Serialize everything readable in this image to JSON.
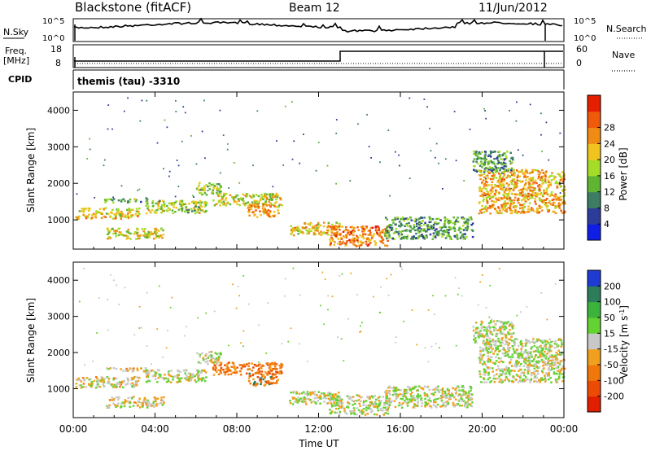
{
  "header": {
    "station": "Blackstone (fitACF)",
    "beam": "Beam 12",
    "date": "11/Jun/2012"
  },
  "noise_panel": {
    "left_label": "N.Sky",
    "right_label": "N.Search",
    "left_ticks": [
      "10^5",
      "10^0"
    ],
    "right_ticks": [
      "10^5",
      "10^0"
    ]
  },
  "freq_panel": {
    "left_label_1": "Freq.",
    "left_label_2": "[MHz]",
    "right_label": "Nave",
    "left_ticks": [
      "18",
      "8"
    ],
    "right_ticks": [
      "60",
      "0"
    ]
  },
  "cpid_panel": {
    "label": "CPID",
    "text": "themis (tau) -3310"
  },
  "chart_data": [
    {
      "type": "heatmap",
      "panel": "power",
      "ylabel": "Slant Range [km]",
      "xlabel": "",
      "colorbar_label": "Power [dB]",
      "colorbar_ticks": [
        "4",
        "8",
        "12",
        "16",
        "20",
        "24",
        "28"
      ],
      "colorbar_colors": [
        "#0f1ee6",
        "#2d3c9a",
        "#3c7d64",
        "#5fb432",
        "#a5dc28",
        "#f0c31e",
        "#f08c14",
        "#f05a0a",
        "#e61e00"
      ],
      "y_ticks": [
        "1000",
        "2000",
        "3000",
        "4000"
      ],
      "x_ticks": [
        "00:00",
        "04:00",
        "08:00",
        "12:00",
        "16:00",
        "20:00",
        "00:00"
      ],
      "ylim": [
        200,
        4500
      ],
      "xlim_hours": [
        0,
        24
      ],
      "scatter_regions": [
        {
          "t0": 0.1,
          "t1": 3.2,
          "r0": 1050,
          "r1": 1350,
          "value": 22
        },
        {
          "t0": 1.5,
          "t1": 3.7,
          "r0": 1500,
          "r1": 1600,
          "value": 14
        },
        {
          "t0": 1.6,
          "t1": 4.4,
          "r0": 500,
          "r1": 800,
          "value": 20
        },
        {
          "t0": 3.5,
          "t1": 6.5,
          "r0": 1200,
          "r1": 1550,
          "value": 18
        },
        {
          "t0": 6.0,
          "t1": 7.2,
          "r0": 1700,
          "r1": 2050,
          "value": 16
        },
        {
          "t0": 6.8,
          "t1": 10.2,
          "r0": 1400,
          "r1": 1750,
          "value": 20
        },
        {
          "t0": 8.5,
          "t1": 10.0,
          "r0": 1100,
          "r1": 1450,
          "value": 25
        },
        {
          "t0": 10.5,
          "t1": 13.0,
          "r0": 600,
          "r1": 950,
          "value": 22
        },
        {
          "t0": 12.5,
          "t1": 15.4,
          "r0": 300,
          "r1": 850,
          "value": 27
        },
        {
          "t0": 15.2,
          "t1": 19.5,
          "r0": 500,
          "r1": 1100,
          "value": 12
        },
        {
          "t0": 19.8,
          "t1": 24.0,
          "r0": 1200,
          "r1": 2400,
          "value": 24
        },
        {
          "t0": 19.5,
          "t1": 21.5,
          "r0": 2300,
          "r1": 2900,
          "value": 12
        }
      ]
    },
    {
      "type": "heatmap",
      "panel": "velocity",
      "ylabel": "Slant Range [km]",
      "xlabel": "Time UT",
      "colorbar_label": "Velocity [m s-1]",
      "colorbar_ticks": [
        "200",
        "100",
        "50",
        "15",
        "-15",
        "-50",
        "-100",
        "-200"
      ],
      "colorbar_colors": [
        "#1e3cd2",
        "#2d7d5a",
        "#3cb43c",
        "#64d232",
        "#c8c8c8",
        "#f0a01e",
        "#f0780a",
        "#eb4b05",
        "#e11e00"
      ],
      "y_ticks": [
        "1000",
        "2000",
        "3000",
        "4000"
      ],
      "x_ticks": [
        "00:00",
        "04:00",
        "08:00",
        "12:00",
        "16:00",
        "20:00",
        "00:00"
      ],
      "ylim": [
        200,
        4500
      ],
      "xlim_hours": [
        0,
        24
      ]
    }
  ]
}
